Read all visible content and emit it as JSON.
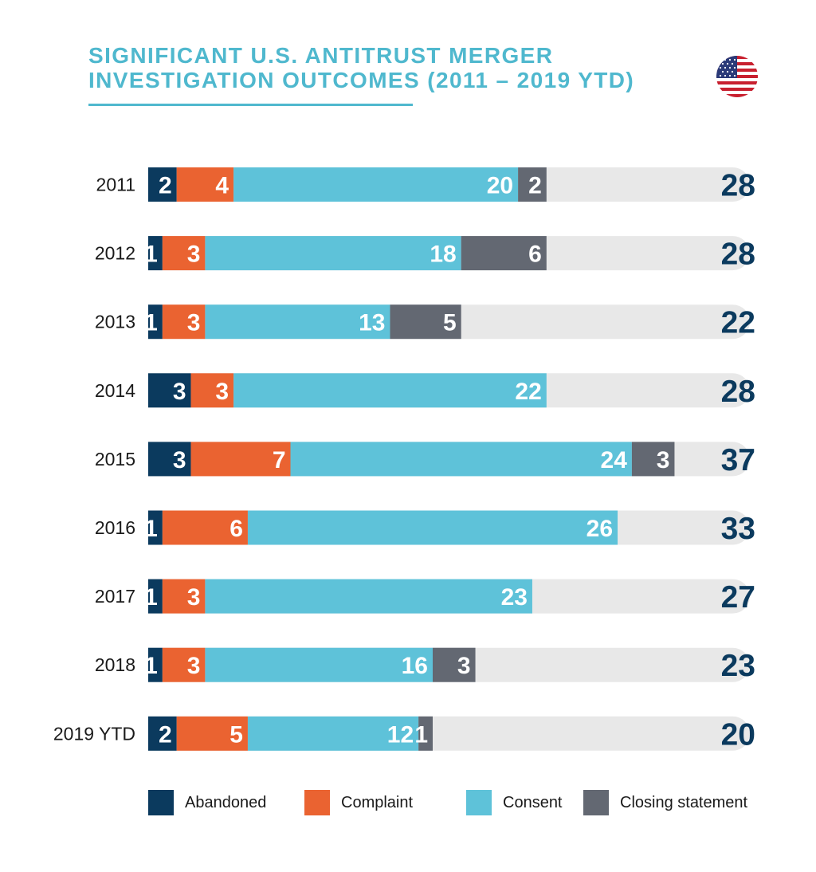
{
  "title_lines": [
    "SIGNIFICANT U.S. ANTITRUST MERGER",
    "INVESTIGATION OUTCOMES (2011 – 2019 YTD)"
  ],
  "colors": {
    "title": "#4fb8ce",
    "abandoned": "#0b3a5e",
    "complaint": "#ea6331",
    "consent": "#5ec2d9",
    "closing_statement": "#636872",
    "track": "#e8e8e8",
    "total_text": "#0b3a5e"
  },
  "icon": "us-flag-icon",
  "chart_data": {
    "type": "bar",
    "orientation": "horizontal",
    "stacked": true,
    "categories": [
      "2011",
      "2012",
      "2013",
      "2014",
      "2015",
      "2016",
      "2017",
      "2018",
      "2019 YTD"
    ],
    "series": [
      {
        "name": "Abandoned",
        "values": [
          2,
          1,
          1,
          3,
          3,
          1,
          1,
          1,
          2
        ]
      },
      {
        "name": "Complaint",
        "values": [
          4,
          3,
          3,
          3,
          7,
          6,
          3,
          3,
          5
        ]
      },
      {
        "name": "Consent",
        "values": [
          20,
          18,
          13,
          22,
          24,
          26,
          23,
          16,
          12
        ]
      },
      {
        "name": "Closing statement",
        "values": [
          2,
          6,
          5,
          null,
          3,
          null,
          null,
          3,
          1
        ]
      }
    ],
    "totals": [
      28,
      28,
      22,
      28,
      37,
      33,
      27,
      23,
      20
    ],
    "xlim": [
      0,
      42
    ],
    "grid": false,
    "legend_position": "bottom"
  }
}
